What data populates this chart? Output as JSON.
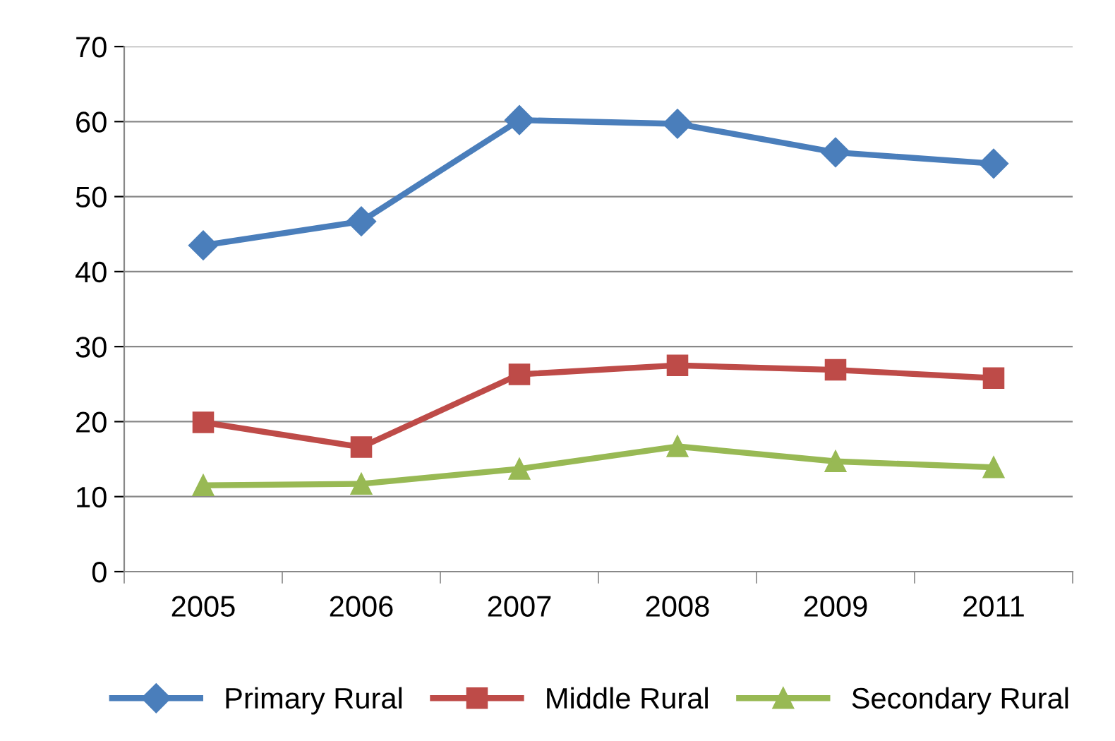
{
  "chart_data": {
    "type": "line",
    "categories": [
      "2005",
      "2006",
      "2007",
      "2008",
      "2009",
      "2011"
    ],
    "series": [
      {
        "name": "Primary Rural",
        "color": "#4a7ebb",
        "marker": "diamond",
        "values": [
          43.5,
          46.7,
          60.2,
          59.7,
          55.9,
          54.4
        ]
      },
      {
        "name": "Middle Rural",
        "color": "#be4b48",
        "marker": "square",
        "values": [
          19.9,
          16.6,
          26.3,
          27.5,
          26.9,
          25.8
        ]
      },
      {
        "name": "Secondary Rural",
        "color": "#98b954",
        "marker": "triangle",
        "values": [
          11.5,
          11.7,
          13.7,
          16.7,
          14.7,
          13.9
        ]
      }
    ],
    "ylim": [
      0,
      70
    ],
    "yticks": [
      0,
      10,
      20,
      30,
      40,
      50,
      60,
      70
    ],
    "grid": "y",
    "legend": "bottom"
  }
}
